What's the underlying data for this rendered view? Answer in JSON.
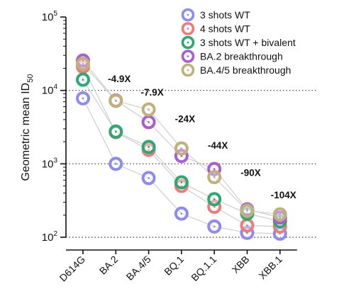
{
  "chart_data": {
    "type": "scatter",
    "y_scale": "log",
    "ylim": [
      100,
      100000
    ],
    "ylabel": "Geometric mean ID",
    "ylabel_sub": "50",
    "y_ticks": [
      {
        "value": 100,
        "base": "10",
        "exp": "2"
      },
      {
        "value": 1000,
        "base": "10",
        "exp": "3"
      },
      {
        "value": 10000,
        "base": "10",
        "exp": "4"
      },
      {
        "value": 100000,
        "base": "10",
        "exp": "5"
      }
    ],
    "reference_lines": [
      100,
      1000,
      10000
    ],
    "categories": [
      "D614G",
      "BA.2",
      "BA.4/5",
      "BQ.1",
      "BQ.1.1",
      "XBB",
      "XBB.1"
    ],
    "series": [
      {
        "name": "3 shots WT",
        "color": "#8c8cf0",
        "values": [
          7800,
          1000,
          640,
          210,
          140,
          115,
          112
        ]
      },
      {
        "name": "4 shots WT",
        "color": "#f07a78",
        "values": [
          21000,
          2700,
          1550,
          500,
          260,
          145,
          140
        ]
      },
      {
        "name": "3 shots WT + bivalent",
        "color": "#2aaa72",
        "values": [
          14000,
          2750,
          1700,
          560,
          330,
          210,
          165
        ]
      },
      {
        "name": "BA.2 breakthrough",
        "color": "#a85dd0",
        "values": [
          25500,
          7300,
          3700,
          1280,
          850,
          240,
          185
        ]
      },
      {
        "name": "BA.4/5 breakthrough",
        "color": "#c0b07a",
        "values": [
          23000,
          7200,
          5500,
          1620,
          660,
          230,
          205
        ]
      }
    ],
    "fold_labels": [
      {
        "text": "-4.9X",
        "category": "BA.2",
        "y": 13000
      },
      {
        "text": "-7.9X",
        "category": "BA.4/5",
        "y": 8500
      },
      {
        "text": "-24X",
        "category": "BQ.1",
        "y": 3700
      },
      {
        "text": "-44X",
        "category": "BQ.1.1",
        "y": 1600
      },
      {
        "text": "-90X",
        "category": "XBB",
        "y": 680
      },
      {
        "text": "-104X",
        "category": "XBB.1",
        "y": 340
      }
    ],
    "legend": {
      "position": "top-right"
    }
  }
}
